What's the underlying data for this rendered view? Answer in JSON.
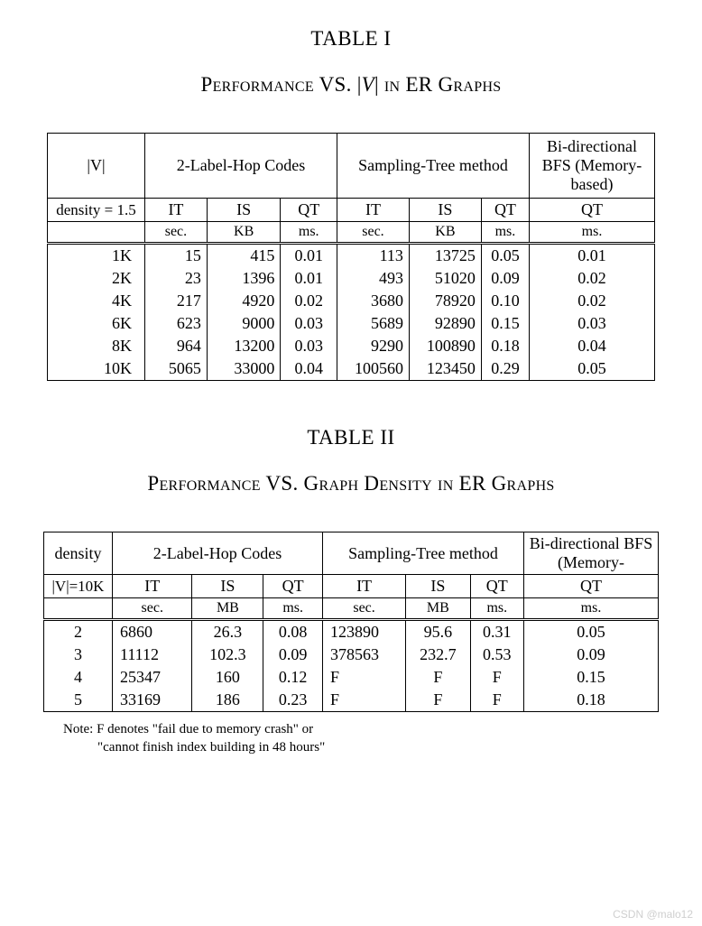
{
  "table1": {
    "label": "TABLE I",
    "caption_pre": "P",
    "caption_text1": "erformance",
    "caption_vs": " VS. ",
    "caption_abs_open": "|",
    "caption_V": "V",
    "caption_abs_close": "|",
    "caption_in": " in ER G",
    "caption_text2": "raphs",
    "col_v": "|V|",
    "subcaption": "density = 1.5",
    "group1": "2-Label-Hop Codes",
    "group2": "Sampling-Tree method",
    "group3": "Bi-directional BFS (Memory-based)",
    "subheaders": [
      "IT",
      "IS",
      "QT",
      "IT",
      "IS",
      "QT",
      "QT"
    ],
    "units": [
      "sec.",
      "KB",
      "ms.",
      "sec.",
      "KB",
      "ms.",
      "ms."
    ],
    "rows": [
      [
        "1K",
        "15",
        "415",
        "0.01",
        "113",
        "13725",
        "0.05",
        "0.01"
      ],
      [
        "2K",
        "23",
        "1396",
        "0.01",
        "493",
        "51020",
        "0.09",
        "0.02"
      ],
      [
        "4K",
        "217",
        "4920",
        "0.02",
        "3680",
        "78920",
        "0.10",
        "0.02"
      ],
      [
        "6K",
        "623",
        "9000",
        "0.03",
        "5689",
        "92890",
        "0.15",
        "0.03"
      ],
      [
        "8K",
        "964",
        "13200",
        "0.03",
        "9290",
        "100890",
        "0.18",
        "0.04"
      ],
      [
        "10K",
        "5065",
        "33000",
        "0.04",
        "100560",
        "123450",
        "0.29",
        "0.05"
      ]
    ]
  },
  "table2": {
    "label": "TABLE II",
    "caption_pre": "P",
    "caption_text1": "erformance",
    "caption_vs": " VS. G",
    "caption_mid": "raph",
    "caption_d": " D",
    "caption_mid2": "ensity in",
    "caption_er": " ER G",
    "caption_text2": "raphs",
    "col_density": "density",
    "subcaption": "|V|=10K",
    "group1": "2-Label-Hop Codes",
    "group2": "Sampling-Tree method",
    "group3": "Bi-directional BFS (Memory-",
    "subheaders": [
      "IT",
      "IS",
      "QT",
      "IT",
      "IS",
      "QT",
      "QT"
    ],
    "units": [
      "sec.",
      "MB",
      "ms.",
      "sec.",
      "MB",
      "ms.",
      "ms."
    ],
    "rows": [
      [
        "2",
        "6860",
        "26.3",
        "0.08",
        "123890",
        "95.6",
        "0.31",
        "0.05"
      ],
      [
        "3",
        "11112",
        "102.3",
        "0.09",
        "378563",
        "232.7",
        "0.53",
        "0.09"
      ],
      [
        "4",
        "25347",
        "160",
        "0.12",
        "F",
        "F",
        "F",
        "0.15"
      ],
      [
        "5",
        "33169",
        "186",
        "0.23",
        "F",
        "F",
        "F",
        "0.18"
      ]
    ],
    "note1": "Note: F denotes \"fail due to memory crash\" or",
    "note2": "\"cannot finish index building in 48 hours\""
  },
  "watermark": "CSDN @malo12"
}
